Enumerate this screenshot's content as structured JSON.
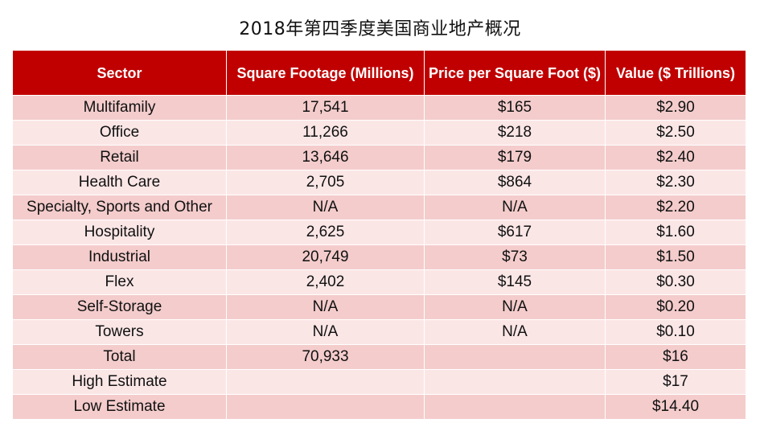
{
  "title": "2018年第四季度美国商业地产概况",
  "colors": {
    "header_bg": "#c00000",
    "header_text": "#ffffff",
    "row_odd": "#f4cccc",
    "row_even": "#fbe6e6"
  },
  "chart_data": {
    "type": "table",
    "title": "2018年第四季度美国商业地产概况",
    "columns": [
      "Sector",
      "Square Footage (Millions)",
      "Price per Square Foot ($)",
      "Value ($ Trillions)"
    ],
    "rows": [
      [
        "Multifamily",
        "17,541",
        "$165",
        "$2.90"
      ],
      [
        "Office",
        "11,266",
        "$218",
        "$2.50"
      ],
      [
        "Retail",
        "13,646",
        "$179",
        "$2.40"
      ],
      [
        "Health Care",
        "2,705",
        "$864",
        "$2.30"
      ],
      [
        "Specialty, Sports and Other",
        "N/A",
        "N/A",
        "$2.20"
      ],
      [
        "Hospitality",
        "2,625",
        "$617",
        "$1.60"
      ],
      [
        "Industrial",
        "20,749",
        "$73",
        "$1.50"
      ],
      [
        "Flex",
        "2,402",
        "$145",
        "$0.30"
      ],
      [
        "Self-Storage",
        "N/A",
        "N/A",
        "$0.20"
      ],
      [
        "Towers",
        "N/A",
        "N/A",
        "$0.10"
      ],
      [
        "Total",
        "70,933",
        "",
        "$16"
      ],
      [
        "High Estimate",
        "",
        "",
        "$17"
      ],
      [
        "Low Estimate",
        "",
        "",
        "$14.40"
      ]
    ]
  }
}
